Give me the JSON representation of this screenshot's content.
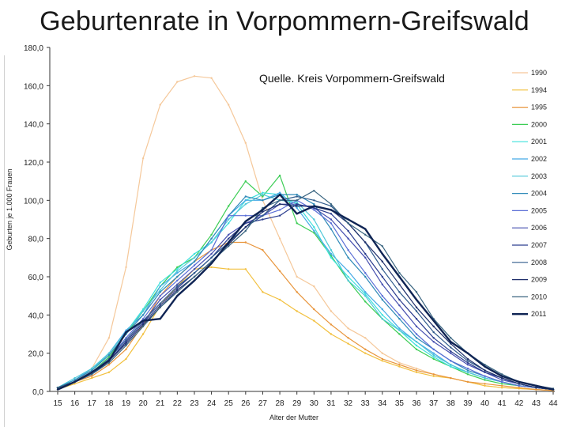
{
  "title": "Geburtenrate in Vorpommern-Greifswald",
  "chart_data": {
    "type": "line",
    "ylabel": "Geburten je 1.000 Frauen",
    "xlabel": "Alter der Mutter",
    "annotation": "Quelle. Kreis Vorpommern-Greifswald",
    "ylim": [
      0,
      180
    ],
    "yticks": [
      "0,0",
      "20,0",
      "40,0",
      "60,0",
      "80,0",
      "100,0",
      "120,0",
      "140,0",
      "160,0",
      "180,0"
    ],
    "x": [
      15,
      16,
      17,
      18,
      19,
      20,
      21,
      22,
      23,
      24,
      25,
      26,
      27,
      28,
      29,
      30,
      31,
      32,
      33,
      34,
      35,
      36,
      37,
      38,
      39,
      40,
      41,
      42,
      43,
      44
    ],
    "grid": false,
    "legend_position": "right",
    "series": [
      {
        "name": "1990",
        "color": "#f5c89a",
        "width": 1.2,
        "values": [
          2,
          5,
          12,
          28,
          65,
          122,
          150,
          162,
          165,
          164,
          150,
          130,
          100,
          80,
          60,
          55,
          42,
          33,
          28,
          20,
          15,
          12,
          9,
          7,
          5,
          3,
          2,
          1.5,
          1,
          0.5
        ]
      },
      {
        "name": "1994",
        "color": "#f2c03e",
        "width": 1.2,
        "values": [
          1,
          4,
          7,
          10,
          17,
          30,
          45,
          55,
          64,
          65,
          64,
          64,
          52,
          48,
          42,
          37,
          30,
          25,
          20,
          16,
          13,
          10,
          8,
          7,
          5,
          3,
          2,
          1.5,
          1,
          0.5
        ]
      },
      {
        "name": "1995",
        "color": "#e8953c",
        "width": 1.2,
        "values": [
          2,
          5,
          8,
          14,
          22,
          35,
          50,
          60,
          68,
          74,
          78,
          78,
          74,
          63,
          52,
          43,
          35,
          28,
          22,
          17,
          14,
          11,
          9,
          7,
          5,
          4,
          3,
          2,
          1,
          0.5
        ]
      },
      {
        "name": "2000",
        "color": "#3ccd55",
        "width": 1.2,
        "values": [
          2,
          5,
          10,
          18,
          30,
          42,
          55,
          65,
          70,
          82,
          97,
          110,
          102,
          113,
          88,
          83,
          71,
          58,
          47,
          38,
          30,
          22,
          17,
          13,
          9,
          6,
          4,
          3,
          2,
          1
        ]
      },
      {
        "name": "2001",
        "color": "#3ce0dc",
        "width": 1.2,
        "values": [
          2,
          6,
          11,
          20,
          31,
          43,
          57,
          64,
          72,
          78,
          88,
          100,
          104,
          103,
          98,
          86,
          70,
          60,
          51,
          40,
          32,
          24,
          18,
          13,
          10,
          7,
          5,
          3,
          2,
          1
        ]
      },
      {
        "name": "2002",
        "color": "#45a9e6",
        "width": 1.2,
        "values": [
          2,
          6,
          12,
          20,
          32,
          40,
          55,
          62,
          68,
          80,
          92,
          100,
          100,
          104,
          96,
          84,
          72,
          63,
          52,
          43,
          33,
          26,
          20,
          14,
          10,
          7,
          5,
          3,
          2,
          1
        ]
      },
      {
        "name": "2003",
        "color": "#4fc8d8",
        "width": 1.2,
        "values": [
          2,
          7,
          12,
          20,
          31,
          42,
          53,
          63,
          70,
          78,
          90,
          98,
          103,
          100,
          99,
          90,
          74,
          58,
          50,
          38,
          32,
          26,
          19,
          14,
          10,
          7,
          5,
          3,
          2,
          1
        ]
      },
      {
        "name": "2004",
        "color": "#2f8ab8",
        "width": 1.2,
        "values": [
          2,
          6,
          11,
          19,
          30,
          40,
          52,
          60,
          68,
          80,
          92,
          102,
          100,
          103,
          103,
          98,
          85,
          70,
          60,
          48,
          38,
          28,
          22,
          16,
          11,
          8,
          5,
          3,
          2,
          1
        ]
      },
      {
        "name": "2005",
        "color": "#5a6ed6",
        "width": 1.2,
        "values": [
          2,
          5,
          10,
          17,
          28,
          38,
          50,
          58,
          66,
          74,
          92,
          92,
          92,
          95,
          100,
          95,
          88,
          74,
          62,
          50,
          40,
          30,
          22,
          16,
          12,
          8,
          5,
          3,
          2,
          1
        ]
      },
      {
        "name": "2006",
        "color": "#4750b0",
        "width": 1.2,
        "values": [
          2,
          5,
          10,
          16,
          26,
          36,
          48,
          56,
          64,
          72,
          82,
          88,
          92,
          98,
          98,
          96,
          90,
          80,
          70,
          56,
          45,
          34,
          26,
          20,
          14,
          10,
          6,
          4,
          2,
          1
        ]
      },
      {
        "name": "2007",
        "color": "#2c3d8f",
        "width": 1.2,
        "values": [
          2,
          5,
          9,
          16,
          26,
          36,
          45,
          54,
          62,
          70,
          80,
          88,
          90,
          92,
          98,
          96,
          93,
          84,
          72,
          60,
          48,
          38,
          28,
          21,
          15,
          10,
          7,
          4,
          2,
          1
        ]
      },
      {
        "name": "2008",
        "color": "#305b8c",
        "width": 1.2,
        "values": [
          2,
          5,
          10,
          17,
          27,
          37,
          46,
          55,
          62,
          70,
          78,
          86,
          92,
          100,
          102,
          100,
          97,
          88,
          78,
          64,
          52,
          42,
          31,
          23,
          16,
          11,
          7,
          4,
          2,
          1
        ]
      },
      {
        "name": "2009",
        "color": "#1f2f6b",
        "width": 1.2,
        "values": [
          2,
          5,
          9,
          16,
          25,
          35,
          44,
          53,
          60,
          68,
          77,
          86,
          94,
          98,
          97,
          97,
          95,
          88,
          78,
          68,
          56,
          44,
          34,
          25,
          17,
          11,
          7,
          4,
          2,
          1
        ]
      },
      {
        "name": "2010",
        "color": "#3a6580",
        "width": 1.2,
        "values": [
          2,
          5,
          9,
          15,
          24,
          34,
          44,
          52,
          60,
          68,
          76,
          84,
          96,
          100,
          100,
          105,
          98,
          88,
          82,
          76,
          62,
          52,
          38,
          28,
          20,
          14,
          9,
          5,
          3,
          1.5
        ]
      },
      {
        "name": "2011",
        "color": "#0f2454",
        "width": 2.4,
        "values": [
          1,
          5,
          10,
          16,
          31,
          37,
          38,
          50,
          58,
          67,
          78,
          89,
          95,
          103,
          93,
          97,
          95,
          90,
          85,
          72,
          60,
          48,
          37,
          26,
          20,
          13,
          8,
          5,
          3,
          1
        ]
      }
    ]
  }
}
